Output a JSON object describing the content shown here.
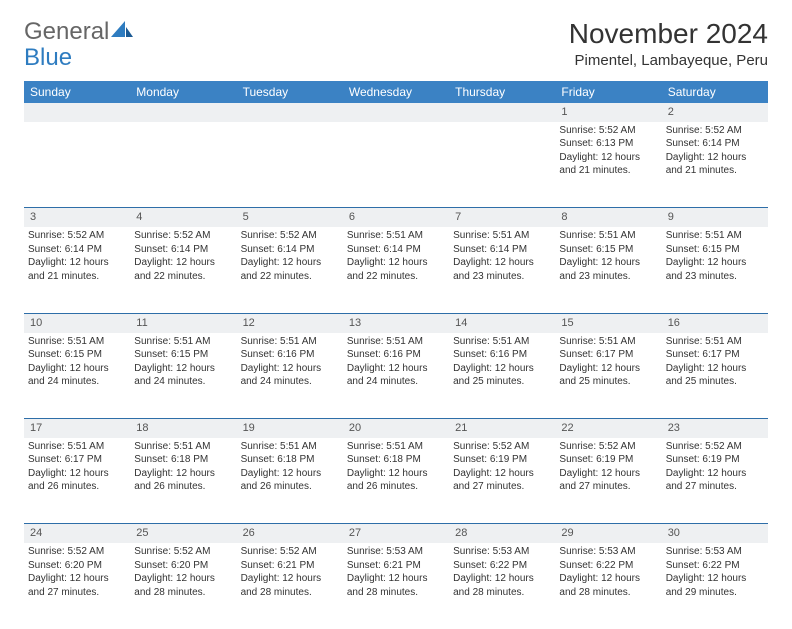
{
  "logo": {
    "text_general": "General",
    "text_blue": "Blue"
  },
  "header": {
    "month_title": "November 2024",
    "location": "Pimentel, Lambayeque, Peru"
  },
  "colors": {
    "header_bg": "#3b82c4",
    "header_text": "#ffffff",
    "daynum_bg": "#eef0f2",
    "border": "#2e6ea8",
    "logo_blue": "#2e7cc0",
    "body_text": "#333333"
  },
  "day_headers": [
    "Sunday",
    "Monday",
    "Tuesday",
    "Wednesday",
    "Thursday",
    "Friday",
    "Saturday"
  ],
  "weeks": [
    {
      "nums": [
        "",
        "",
        "",
        "",
        "",
        "1",
        "2"
      ],
      "cells": [
        null,
        null,
        null,
        null,
        null,
        {
          "sunrise": "5:52 AM",
          "sunset": "6:13 PM",
          "daylight": "12 hours and 21 minutes."
        },
        {
          "sunrise": "5:52 AM",
          "sunset": "6:14 PM",
          "daylight": "12 hours and 21 minutes."
        }
      ]
    },
    {
      "nums": [
        "3",
        "4",
        "5",
        "6",
        "7",
        "8",
        "9"
      ],
      "cells": [
        {
          "sunrise": "5:52 AM",
          "sunset": "6:14 PM",
          "daylight": "12 hours and 21 minutes."
        },
        {
          "sunrise": "5:52 AM",
          "sunset": "6:14 PM",
          "daylight": "12 hours and 22 minutes."
        },
        {
          "sunrise": "5:52 AM",
          "sunset": "6:14 PM",
          "daylight": "12 hours and 22 minutes."
        },
        {
          "sunrise": "5:51 AM",
          "sunset": "6:14 PM",
          "daylight": "12 hours and 22 minutes."
        },
        {
          "sunrise": "5:51 AM",
          "sunset": "6:14 PM",
          "daylight": "12 hours and 23 minutes."
        },
        {
          "sunrise": "5:51 AM",
          "sunset": "6:15 PM",
          "daylight": "12 hours and 23 minutes."
        },
        {
          "sunrise": "5:51 AM",
          "sunset": "6:15 PM",
          "daylight": "12 hours and 23 minutes."
        }
      ]
    },
    {
      "nums": [
        "10",
        "11",
        "12",
        "13",
        "14",
        "15",
        "16"
      ],
      "cells": [
        {
          "sunrise": "5:51 AM",
          "sunset": "6:15 PM",
          "daylight": "12 hours and 24 minutes."
        },
        {
          "sunrise": "5:51 AM",
          "sunset": "6:15 PM",
          "daylight": "12 hours and 24 minutes."
        },
        {
          "sunrise": "5:51 AM",
          "sunset": "6:16 PM",
          "daylight": "12 hours and 24 minutes."
        },
        {
          "sunrise": "5:51 AM",
          "sunset": "6:16 PM",
          "daylight": "12 hours and 24 minutes."
        },
        {
          "sunrise": "5:51 AM",
          "sunset": "6:16 PM",
          "daylight": "12 hours and 25 minutes."
        },
        {
          "sunrise": "5:51 AM",
          "sunset": "6:17 PM",
          "daylight": "12 hours and 25 minutes."
        },
        {
          "sunrise": "5:51 AM",
          "sunset": "6:17 PM",
          "daylight": "12 hours and 25 minutes."
        }
      ]
    },
    {
      "nums": [
        "17",
        "18",
        "19",
        "20",
        "21",
        "22",
        "23"
      ],
      "cells": [
        {
          "sunrise": "5:51 AM",
          "sunset": "6:17 PM",
          "daylight": "12 hours and 26 minutes."
        },
        {
          "sunrise": "5:51 AM",
          "sunset": "6:18 PM",
          "daylight": "12 hours and 26 minutes."
        },
        {
          "sunrise": "5:51 AM",
          "sunset": "6:18 PM",
          "daylight": "12 hours and 26 minutes."
        },
        {
          "sunrise": "5:51 AM",
          "sunset": "6:18 PM",
          "daylight": "12 hours and 26 minutes."
        },
        {
          "sunrise": "5:52 AM",
          "sunset": "6:19 PM",
          "daylight": "12 hours and 27 minutes."
        },
        {
          "sunrise": "5:52 AM",
          "sunset": "6:19 PM",
          "daylight": "12 hours and 27 minutes."
        },
        {
          "sunrise": "5:52 AM",
          "sunset": "6:19 PM",
          "daylight": "12 hours and 27 minutes."
        }
      ]
    },
    {
      "nums": [
        "24",
        "25",
        "26",
        "27",
        "28",
        "29",
        "30"
      ],
      "cells": [
        {
          "sunrise": "5:52 AM",
          "sunset": "6:20 PM",
          "daylight": "12 hours and 27 minutes."
        },
        {
          "sunrise": "5:52 AM",
          "sunset": "6:20 PM",
          "daylight": "12 hours and 28 minutes."
        },
        {
          "sunrise": "5:52 AM",
          "sunset": "6:21 PM",
          "daylight": "12 hours and 28 minutes."
        },
        {
          "sunrise": "5:53 AM",
          "sunset": "6:21 PM",
          "daylight": "12 hours and 28 minutes."
        },
        {
          "sunrise": "5:53 AM",
          "sunset": "6:22 PM",
          "daylight": "12 hours and 28 minutes."
        },
        {
          "sunrise": "5:53 AM",
          "sunset": "6:22 PM",
          "daylight": "12 hours and 28 minutes."
        },
        {
          "sunrise": "5:53 AM",
          "sunset": "6:22 PM",
          "daylight": "12 hours and 29 minutes."
        }
      ]
    }
  ],
  "labels": {
    "sunrise_prefix": "Sunrise: ",
    "sunset_prefix": "Sunset: ",
    "daylight_prefix": "Daylight: "
  }
}
